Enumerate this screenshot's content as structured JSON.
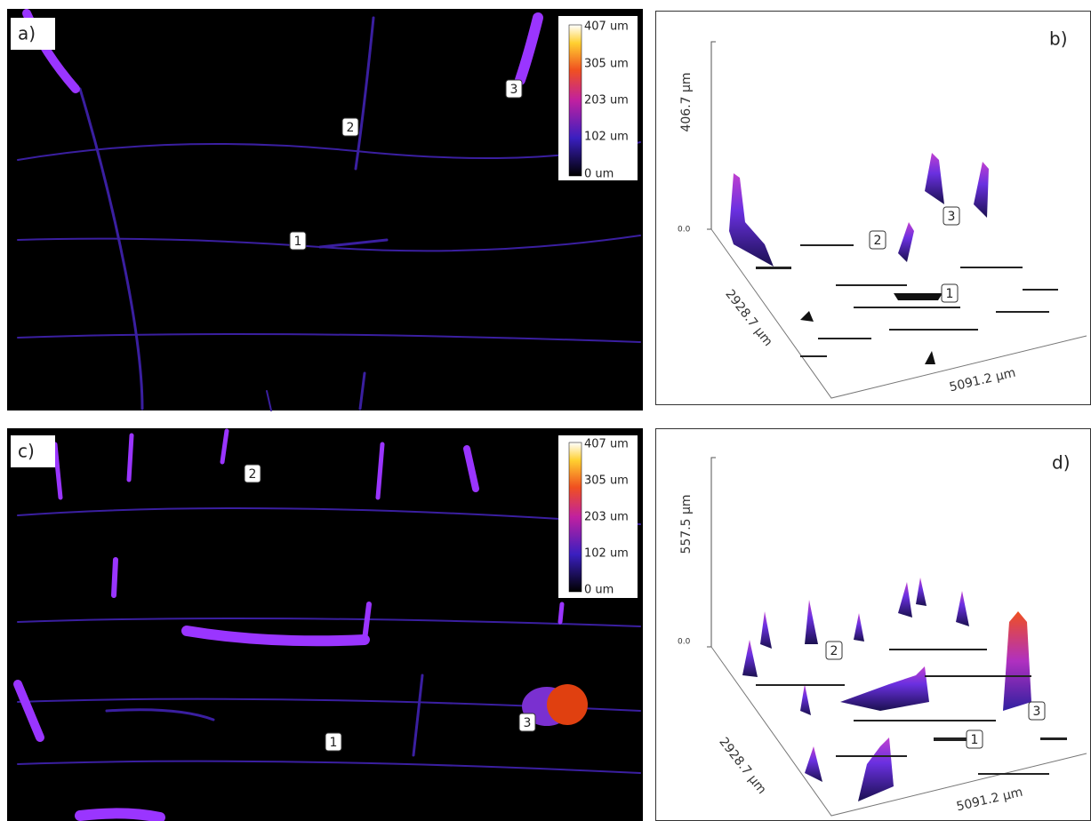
{
  "panels": [
    {
      "label": "a)",
      "colorbar": [
        "407 um",
        "305 um",
        "203 um",
        "102 um",
        "0 um"
      ],
      "markers": [
        "1",
        "2",
        "3"
      ]
    },
    {
      "label": "b)",
      "z_label": "406.7 µm",
      "z_zero": "0.0",
      "y_label": "2928.7 µm",
      "x_label": "5091.2 µm",
      "markers": [
        "1",
        "2",
        "3"
      ]
    },
    {
      "label": "c)",
      "colorbar": [
        "407 um",
        "305 um",
        "203 um",
        "102 um",
        "0 um"
      ],
      "markers": [
        "1",
        "2",
        "3"
      ]
    },
    {
      "label": "d)",
      "z_label": "557.5 µm",
      "z_zero": "0.0",
      "y_label": "2928.7 µm",
      "x_label": "5091.2 µm",
      "markers": [
        "1",
        "2",
        "3"
      ]
    }
  ]
}
